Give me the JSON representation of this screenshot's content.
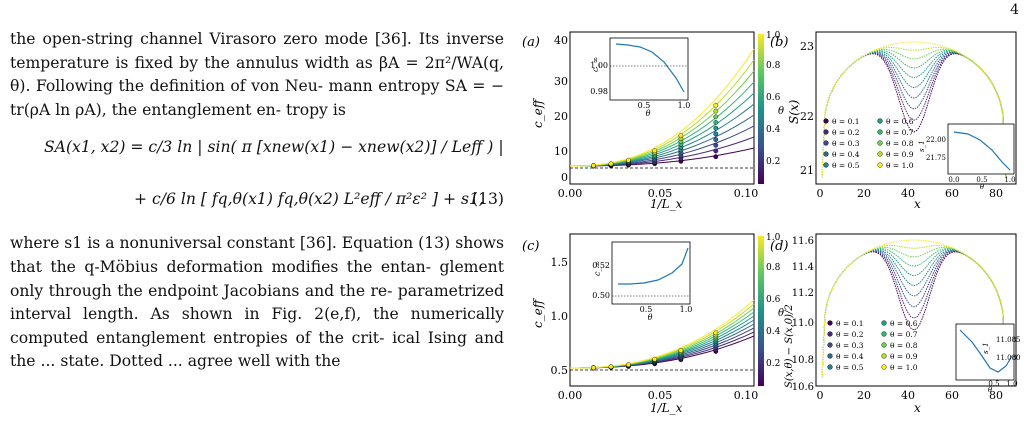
{
  "page_number": "4",
  "text": {
    "para1_line1": "the open-string channel Virasoro zero mode [36]. Its",
    "para1_line2": "inverse temperature is fixed by the annulus width as",
    "para1_line3": "βA = 2π²/WA(q, θ). Following the definition of von Neu-",
    "para1_line4": "mann entropy SA = − tr(ρA ln ρA), the entanglement en-",
    "para1_line5": "tropy is",
    "eq_line1": "SA(x1, x2) = c/3 ln | sin( π [xnew(x1) − xnew(x2)] / Leff ) |",
    "eq_line2": "+ c/6 ln [ fq,θ(x1) fq,θ(x2) L²eff / π²ε² ] + s1,",
    "eq_number": "(13)",
    "para2_line1": "where s1 is a nonuniversal constant [36]. Equation (13)",
    "para2_line2": "shows that the q-Möbius deformation modifies the entan-",
    "para2_line3": "glement only through the endpoint Jacobians and the re-",
    "para2_line4": "parametrized interval length. As shown in Fig. 2(e,f), the",
    "para2_line5": "numerically computed entanglement entropies of the crit-",
    "para2_line6": "ical Ising and the ... state. Dotted ... agree well with the"
  },
  "panels": {
    "a": {
      "label": "(a)",
      "ylabel": "c_eff",
      "xlabel": "1/L_x",
      "yticks": [
        "10",
        "20",
        "30",
        "40"
      ],
      "ytick0": "0",
      "xticks": [
        "0.00",
        "0.05",
        "0.10"
      ],
      "cbar_label": "θ",
      "cbar_ticks": [
        "0.2",
        "0.4",
        "0.6",
        "0.8",
        "1.0"
      ],
      "inset_yticks": [
        "1.00",
        "0.98"
      ],
      "inset_xticks": [
        "0.5",
        "1.0"
      ],
      "inset_xlabel": "θ",
      "inset_ylabel": "c_∞"
    },
    "b": {
      "label": "(b)",
      "ylabel": "S(x)",
      "xlabel": "x",
      "yticks": [
        "21",
        "22",
        "23"
      ],
      "xticks": [
        "0",
        "20",
        "40",
        "60",
        "80"
      ],
      "inset_yticks": [
        "22.00",
        "21.75"
      ],
      "inset_xticks": [
        "0.0",
        "0.5",
        "1.0"
      ],
      "inset_xlabel": "θ",
      "inset_ylabel": "s_1"
    },
    "c": {
      "label": "(c)",
      "ylabel": "c_eff",
      "xlabel": "1/L_x",
      "yticks": [
        "0.5",
        "1.0",
        "1.5"
      ],
      "xticks": [
        "0.00",
        "0.05",
        "0.10"
      ],
      "cbar_label": "θ",
      "cbar_ticks": [
        "0.2",
        "0.4",
        "0.6",
        "0.8",
        "1.0"
      ],
      "inset_yticks": [
        "0.52",
        "0.50"
      ],
      "inset_xticks": [
        "0.5",
        "1.0"
      ],
      "inset_xlabel": "θ",
      "inset_ylabel": "c_∞"
    },
    "d": {
      "label": "(d)",
      "ylabel": "S(x,θ) − S(x,0)/2",
      "xlabel": "x",
      "yticks": [
        "10.6",
        "10.8",
        "11.0",
        "11.2",
        "11.4",
        "11.6"
      ],
      "xticks": [
        "0",
        "20",
        "40",
        "60",
        "80"
      ],
      "inset_yticks": [
        "11.085",
        "11.080"
      ],
      "inset_xticks": [
        "0.5",
        "1.0"
      ],
      "inset_xlabel": "θ",
      "inset_ylabel": "s_1"
    }
  },
  "legend_theta": [
    "θ = 0.1",
    "θ = 0.2",
    "θ = 0.3",
    "θ = 0.4",
    "θ = 0.5",
    "θ = 0.6",
    "θ = 0.7",
    "θ = 0.8",
    "θ = 0.9",
    "θ = 1.0"
  ],
  "colors": {
    "cite": "#2a4bd7",
    "cmap_low": "#440154",
    "cmap_mid": "#21918c",
    "cmap_high": "#fde725"
  }
}
